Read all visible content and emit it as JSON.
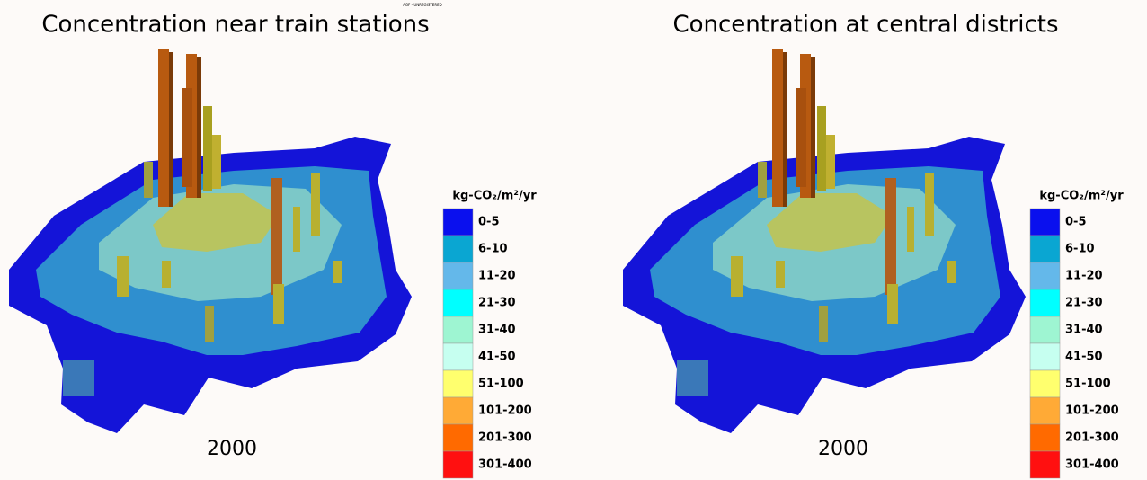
{
  "watermark": "AGF - UNREGISTERED",
  "panels": [
    {
      "title": "Concentration near train stations",
      "year": "2000",
      "legend": {
        "unit": "kg-CO₂/m²/yr",
        "items": [
          {
            "label": "0-5",
            "color": "#0a10ee"
          },
          {
            "label": "6-10",
            "color": "#0aa6d2"
          },
          {
            "label": "11-20",
            "color": "#64b8ea"
          },
          {
            "label": "21-30",
            "color": "#00ffff"
          },
          {
            "label": "31-40",
            "color": "#9ef5d2"
          },
          {
            "label": "41-50",
            "color": "#c6fff0"
          },
          {
            "label": "51-100",
            "color": "#ffff6e"
          },
          {
            "label": "101-200",
            "color": "#ffaa36"
          },
          {
            "label": "201-300",
            "color": "#ff6a00"
          },
          {
            "label": "301-400",
            "color": "#ff1010"
          }
        ]
      }
    },
    {
      "title": "Concentration at central districts",
      "year": "2000",
      "legend": {
        "unit": "kg-CO₂/m²/yr",
        "items": [
          {
            "label": "0-5",
            "color": "#0a10ee"
          },
          {
            "label": "6-10",
            "color": "#0aa6d2"
          },
          {
            "label": "11-20",
            "color": "#64b8ea"
          },
          {
            "label": "21-30",
            "color": "#00ffff"
          },
          {
            "label": "31-40",
            "color": "#9ef5d2"
          },
          {
            "label": "41-50",
            "color": "#c6fff0"
          },
          {
            "label": "51-100",
            "color": "#ffff6e"
          },
          {
            "label": "101-200",
            "color": "#ffaa36"
          },
          {
            "label": "201-300",
            "color": "#ff6a00"
          },
          {
            "label": "301-400",
            "color": "#ff1010"
          }
        ]
      }
    }
  ]
}
